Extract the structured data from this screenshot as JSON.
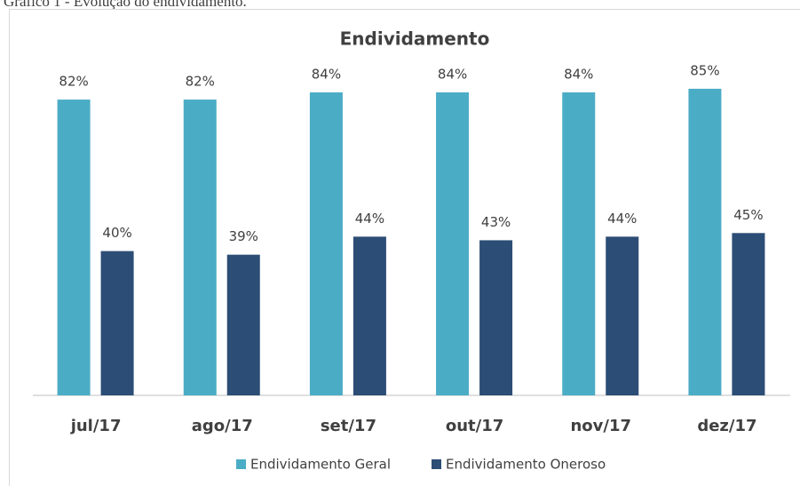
{
  "caption": "Gráfico 1 - Evolução do endividamento.",
  "chart_data": {
    "type": "bar",
    "title": "Endividamento",
    "categories": [
      "jul/17",
      "ago/17",
      "set/17",
      "out/17",
      "nov/17",
      "dez/17"
    ],
    "ylim": [
      0,
      100
    ],
    "legend": "bottom",
    "series": [
      {
        "name": "Endividamento Geral",
        "color": "#4bacc6",
        "values": [
          82,
          82,
          84,
          84,
          84,
          85
        ],
        "value_labels": [
          "82%",
          "82%",
          "84%",
          "84%",
          "84%",
          "85%"
        ]
      },
      {
        "name": "Endividamento Oneroso",
        "color": "#2c4d75",
        "values": [
          40,
          39,
          44,
          43,
          44,
          45
        ],
        "value_labels": [
          "40%",
          "39%",
          "44%",
          "43%",
          "44%",
          "45%"
        ]
      }
    ]
  }
}
